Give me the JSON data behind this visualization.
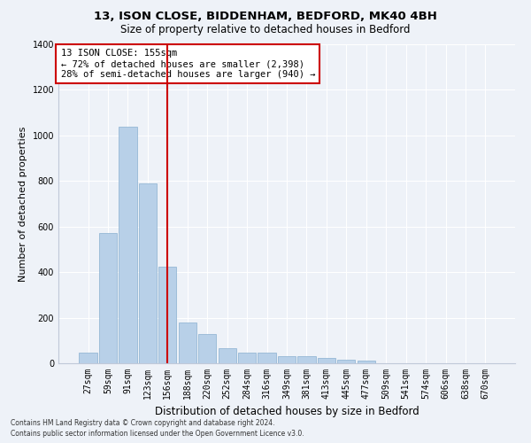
{
  "title1": "13, ISON CLOSE, BIDDENHAM, BEDFORD, MK40 4BH",
  "title2": "Size of property relative to detached houses in Bedford",
  "xlabel": "Distribution of detached houses by size in Bedford",
  "ylabel": "Number of detached properties",
  "categories": [
    "27sqm",
    "59sqm",
    "91sqm",
    "123sqm",
    "156sqm",
    "188sqm",
    "220sqm",
    "252sqm",
    "284sqm",
    "316sqm",
    "349sqm",
    "381sqm",
    "413sqm",
    "445sqm",
    "477sqm",
    "509sqm",
    "541sqm",
    "574sqm",
    "606sqm",
    "638sqm",
    "670sqm"
  ],
  "values": [
    45,
    570,
    1040,
    790,
    425,
    180,
    130,
    65,
    45,
    45,
    30,
    30,
    22,
    15,
    12,
    0,
    0,
    0,
    0,
    0,
    0
  ],
  "bar_color": "#b8d0e8",
  "bar_edge_color": "#8ab0d0",
  "vline_color": "#cc0000",
  "annotation_text": "13 ISON CLOSE: 155sqm\n← 72% of detached houses are smaller (2,398)\n28% of semi-detached houses are larger (940) →",
  "annotation_box_color": "#ffffff",
  "annotation_box_edge": "#cc0000",
  "ylim": [
    0,
    1400
  ],
  "yticks": [
    0,
    200,
    400,
    600,
    800,
    1000,
    1200,
    1400
  ],
  "footer1": "Contains HM Land Registry data © Crown copyright and database right 2024.",
  "footer2": "Contains public sector information licensed under the Open Government Licence v3.0.",
  "bg_color": "#eef2f8",
  "grid_color": "#ffffff",
  "title1_fontsize": 9.5,
  "title2_fontsize": 8.5,
  "ylabel_fontsize": 8,
  "xlabel_fontsize": 8.5,
  "tick_fontsize": 7,
  "annot_fontsize": 7.5,
  "footer_fontsize": 5.5
}
